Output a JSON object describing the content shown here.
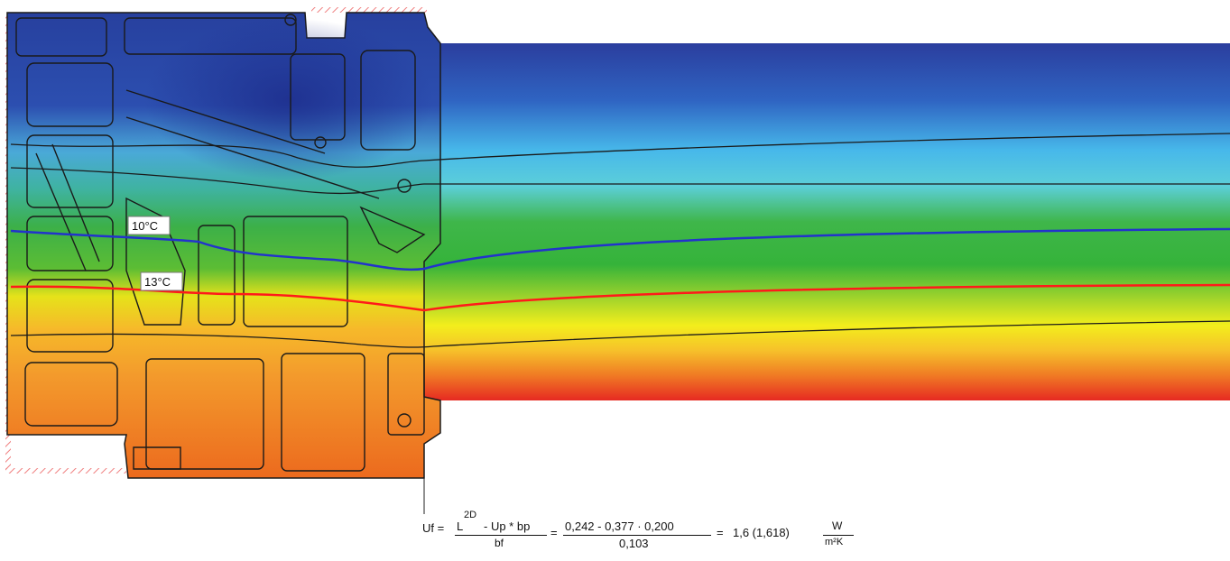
{
  "isotherms": [
    {
      "label": "10°C",
      "color": "#2233cc"
    },
    {
      "label": "13°C",
      "color": "#ff1a1a"
    }
  ],
  "color_scale": {
    "cold": "#2f4aa8",
    "cool": "#4cc2ee",
    "mid": "#3cb33c",
    "warm": "#f2ef1a",
    "hot": "#ee3322"
  },
  "formula": {
    "uf": "Uf =",
    "l2d": "L",
    "sup": "2D",
    "num_rest": "- Up * bp",
    "den": "bf",
    "eq1": "=",
    "num_values": "0,242 - 0,377 · 0,200",
    "den_value": "0,103",
    "eq2": "=",
    "result": "1,6 (1,618)",
    "unit_num": "W",
    "unit_den": "m²K"
  }
}
